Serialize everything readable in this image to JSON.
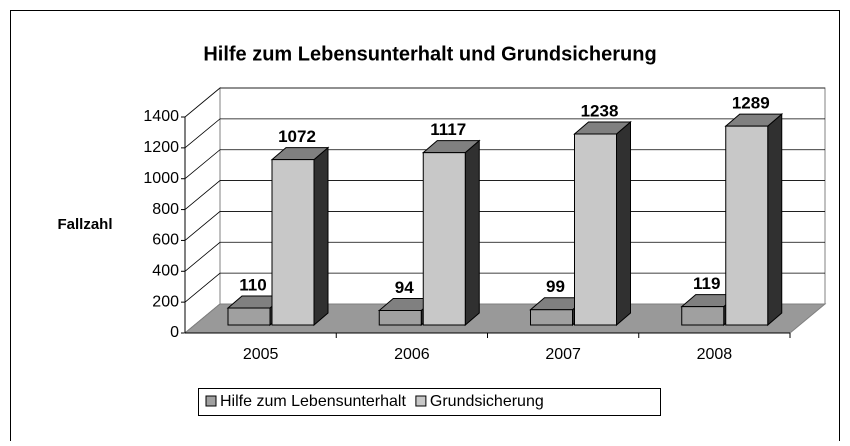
{
  "chart_data": {
    "type": "bar3d",
    "title": "Hilfe zum Lebensunterhalt und Grundsicherung",
    "y_label": "Fallzahl",
    "categories": [
      "2005",
      "2006",
      "2007",
      "2008"
    ],
    "series": [
      {
        "name": "Hilfe zum Lebensunterhalt",
        "color": "#a0a0a0",
        "values": [
          110,
          94,
          99,
          119
        ]
      },
      {
        "name": "Grundsicherung",
        "color": "#c8c8c8",
        "values": [
          1072,
          1117,
          1238,
          1289
        ]
      }
    ],
    "ylim": [
      0,
      1400
    ],
    "yticks": [
      0,
      200,
      400,
      600,
      800,
      1000,
      1200,
      1400
    ],
    "grid": true,
    "legend": "bottom"
  }
}
